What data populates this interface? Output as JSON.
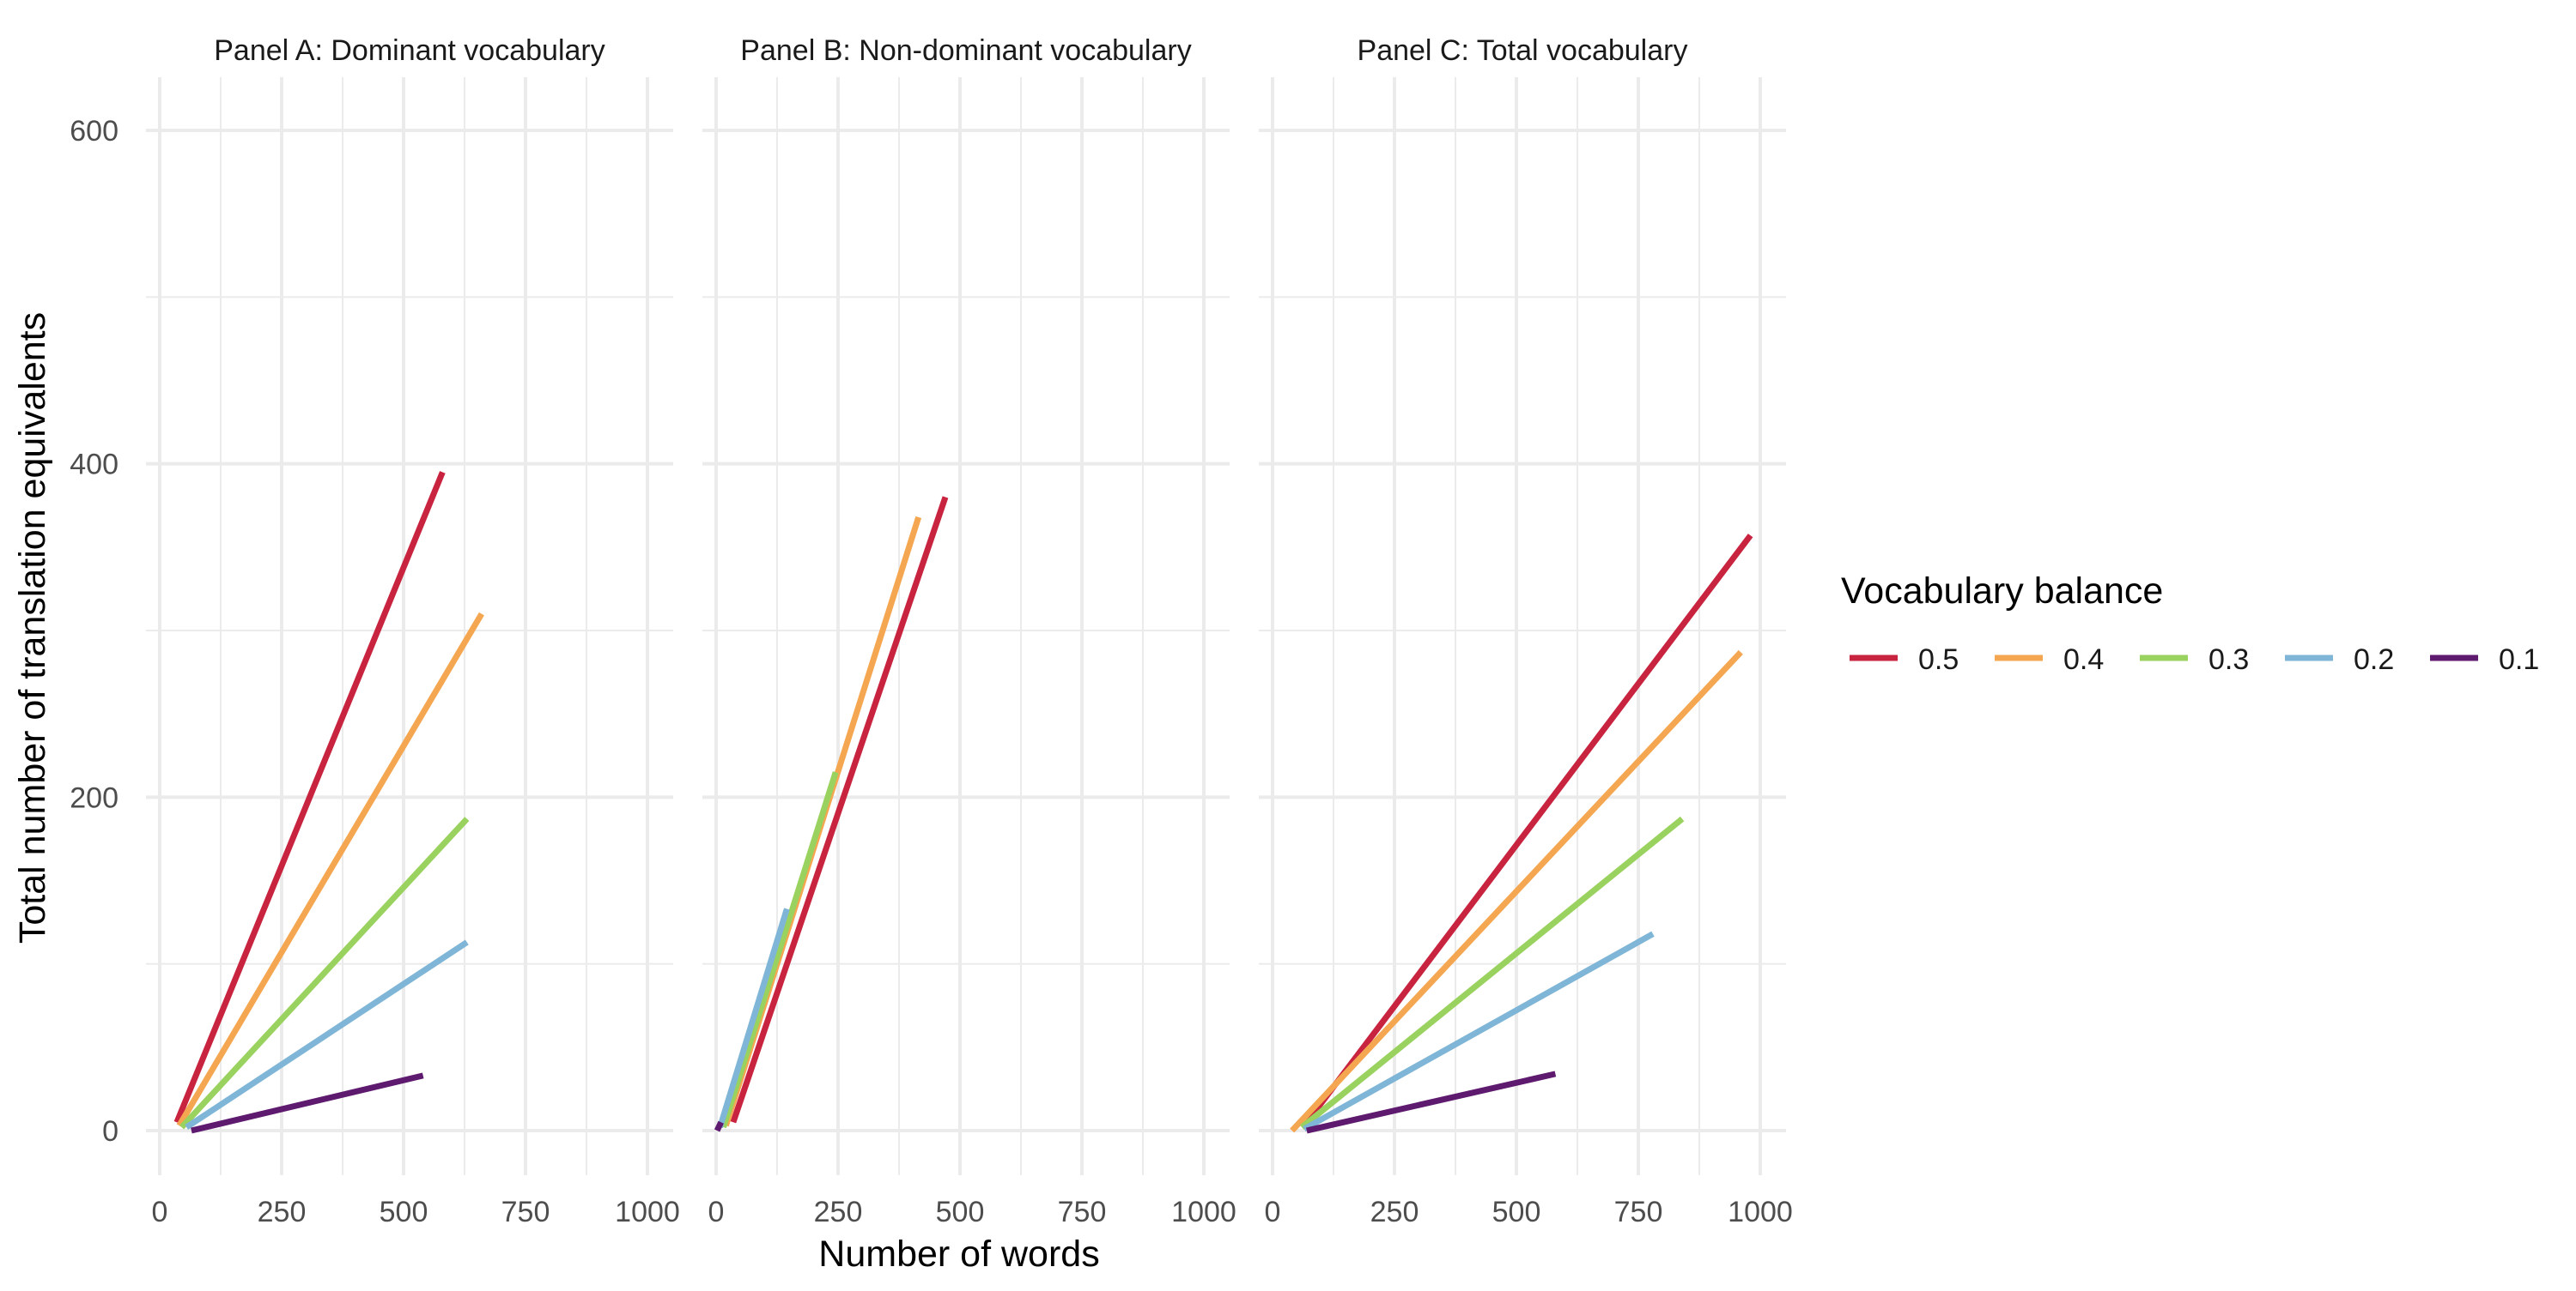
{
  "colors": {
    "0.5": "#C8233F",
    "0.4": "#F5A650",
    "0.3": "#99D25E",
    "0.2": "#7FB5D6",
    "0.1": "#5E1A6E",
    "grid": "#EBEBEB",
    "background": "#FFFFFF"
  },
  "chart_data": {
    "type": "line",
    "xlabel": "Number of words",
    "ylabel": "Total number of translation equivalents",
    "xlim": [
      0,
      1000
    ],
    "ylim": [
      0,
      600
    ],
    "xticks": [
      "0",
      "250",
      "500",
      "750",
      "1000"
    ],
    "yticks": [
      "0",
      "200",
      "400",
      "600"
    ],
    "grid": true,
    "legend": {
      "title": "Vocabulary balance",
      "position": "right",
      "entries": [
        "0.5",
        "0.4",
        "0.3",
        "0.2",
        "0.1"
      ]
    },
    "panels": [
      {
        "title": "Panel A: Dominant vocabulary",
        "series": [
          {
            "name": "0.5",
            "x": [
              35,
              580
            ],
            "y": [
              5,
              395
            ]
          },
          {
            "name": "0.4",
            "x": [
              40,
              660
            ],
            "y": [
              3,
              310
            ]
          },
          {
            "name": "0.3",
            "x": [
              45,
              630
            ],
            "y": [
              2,
              187
            ]
          },
          {
            "name": "0.2",
            "x": [
              55,
              630
            ],
            "y": [
              2,
              113
            ]
          },
          {
            "name": "0.1",
            "x": [
              65,
              540
            ],
            "y": [
              0,
              33
            ]
          }
        ]
      },
      {
        "title": "Panel B: Non-dominant vocabulary",
        "series": [
          {
            "name": "0.5",
            "x": [
              35,
              470
            ],
            "y": [
              5,
              380
            ]
          },
          {
            "name": "0.4",
            "x": [
              20,
              415
            ],
            "y": [
              3,
              368
            ]
          },
          {
            "name": "0.3",
            "x": [
              15,
              245
            ],
            "y": [
              2,
              215
            ]
          },
          {
            "name": "0.2",
            "x": [
              8,
              145
            ],
            "y": [
              2,
              133
            ]
          },
          {
            "name": "0.1",
            "x": [
              2,
              10
            ],
            "y": [
              0,
              5
            ]
          }
        ]
      },
      {
        "title": "Panel C: Total vocabulary",
        "series": [
          {
            "name": "0.5",
            "x": [
              65,
              980
            ],
            "y": [
              3,
              357
            ]
          },
          {
            "name": "0.4",
            "x": [
              40,
              960
            ],
            "y": [
              0,
              287
            ]
          },
          {
            "name": "0.3",
            "x": [
              60,
              840
            ],
            "y": [
              2,
              187
            ]
          },
          {
            "name": "0.2",
            "x": [
              65,
              780
            ],
            "y": [
              1,
              118
            ]
          },
          {
            "name": "0.1",
            "x": [
              70,
              580
            ],
            "y": [
              0,
              34
            ]
          }
        ]
      }
    ]
  }
}
